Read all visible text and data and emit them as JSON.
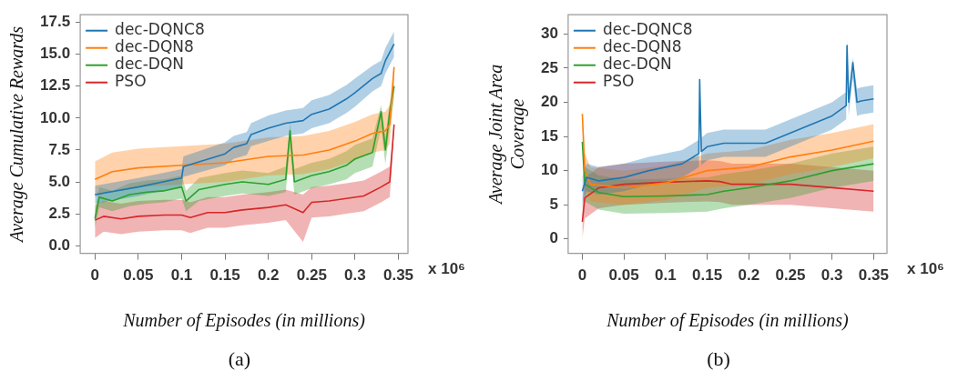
{
  "chart_data": [
    {
      "type": "line",
      "xlabel": "Number of Episodes (in millions)",
      "ylabel": "Average Cumulative Rewards",
      "xlim": [
        -0.017,
        0.361
      ],
      "ylim": [
        -0.6,
        18.1
      ],
      "xticks": [
        0,
        0.05,
        0.1,
        0.15,
        0.2,
        0.25,
        0.3,
        0.35
      ],
      "yticks": [
        {
          "value": 0,
          "label": "0.0"
        },
        {
          "value": 2.5,
          "label": "2.5"
        },
        {
          "value": 5,
          "label": "5.0"
        },
        {
          "value": 7.5,
          "label": "7.5"
        },
        {
          "value": 10,
          "label": "10.0"
        },
        {
          "value": 12.5,
          "label": "12.5"
        },
        {
          "value": 15,
          "label": "15.0"
        },
        {
          "value": 17.5,
          "label": "17.5"
        }
      ],
      "grid": false,
      "legend": "top left",
      "marker": "none",
      "line_style": "solid",
      "annotations": [
        "x 10⁶",
        "(a)"
      ],
      "series": [
        {
          "name": "dec-DQNC8",
          "color": "#1f77b4",
          "x": [
            0,
            0.05,
            0.1,
            0.102,
            0.15,
            0.16,
            0.175,
            0.18,
            0.2,
            0.22,
            0.24,
            0.25,
            0.27,
            0.29,
            0.3,
            0.32,
            0.33,
            0.335,
            0.345
          ],
          "values": [
            4.0,
            4.6,
            5.3,
            6.2,
            7.2,
            7.7,
            8.0,
            8.7,
            9.2,
            9.6,
            9.8,
            10.3,
            10.7,
            11.5,
            12.0,
            13.1,
            13.5,
            14.5,
            15.8
          ],
          "lower": [
            3.3,
            3.9,
            4.6,
            5.4,
            6.3,
            6.8,
            7.1,
            7.8,
            8.2,
            8.6,
            8.8,
            9.2,
            9.6,
            10.4,
            10.9,
            12.1,
            12.5,
            13.5,
            14.8
          ],
          "upper": [
            4.7,
            5.3,
            6.0,
            7.0,
            8.1,
            8.6,
            8.9,
            9.6,
            10.2,
            10.6,
            10.8,
            11.4,
            11.8,
            12.6,
            13.1,
            14.1,
            14.5,
            15.5,
            16.8
          ]
        },
        {
          "name": "dec-DQN8",
          "color": "#ff7f0e",
          "x": [
            0,
            0.02,
            0.05,
            0.1,
            0.15,
            0.2,
            0.24,
            0.27,
            0.3,
            0.32,
            0.335,
            0.34,
            0.345
          ],
          "values": [
            5.2,
            5.8,
            6.1,
            6.3,
            6.5,
            7.0,
            7.1,
            7.5,
            8.2,
            8.8,
            9.0,
            9.5,
            14.0
          ],
          "lower": [
            3.8,
            4.3,
            4.6,
            4.8,
            5.0,
            5.5,
            5.6,
            6.0,
            6.7,
            7.3,
            7.5,
            8.0,
            12.5
          ],
          "upper": [
            6.6,
            7.3,
            7.6,
            7.8,
            8.0,
            8.5,
            8.6,
            9.0,
            9.7,
            10.3,
            10.5,
            11.0,
            14.5
          ]
        },
        {
          "name": "dec-DQN",
          "color": "#2ca02c",
          "x": [
            0,
            0.005,
            0.02,
            0.04,
            0.06,
            0.08,
            0.1,
            0.105,
            0.12,
            0.15,
            0.17,
            0.2,
            0.22,
            0.225,
            0.23,
            0.25,
            0.27,
            0.29,
            0.3,
            0.32,
            0.33,
            0.335,
            0.34,
            0.345
          ],
          "values": [
            2.1,
            3.8,
            3.5,
            4.0,
            4.2,
            4.3,
            4.6,
            3.5,
            4.4,
            4.8,
            5.0,
            4.8,
            5.2,
            9.0,
            5.0,
            5.5,
            5.8,
            6.3,
            6.8,
            7.3,
            10.5,
            7.5,
            10.5,
            12.5
          ],
          "lower": [
            1.4,
            3.0,
            2.7,
            3.1,
            3.3,
            3.4,
            3.7,
            2.7,
            3.5,
            3.9,
            4.1,
            3.9,
            4.2,
            7.8,
            4.0,
            4.5,
            4.8,
            5.2,
            5.7,
            6.2,
            9.2,
            6.4,
            9.3,
            11.5
          ],
          "upper": [
            2.8,
            4.6,
            4.3,
            4.9,
            5.1,
            5.2,
            5.5,
            4.3,
            5.3,
            5.7,
            5.9,
            5.7,
            6.2,
            9.6,
            6.0,
            6.5,
            6.8,
            7.4,
            7.9,
            8.4,
            11.0,
            8.6,
            11.2,
            12.8
          ]
        },
        {
          "name": "PSO",
          "color": "#d62728",
          "x": [
            0,
            0.01,
            0.03,
            0.05,
            0.08,
            0.1,
            0.11,
            0.13,
            0.15,
            0.17,
            0.2,
            0.22,
            0.24,
            0.25,
            0.27,
            0.29,
            0.31,
            0.33,
            0.34,
            0.345
          ],
          "values": [
            2.0,
            2.3,
            2.1,
            2.3,
            2.4,
            2.4,
            2.2,
            2.6,
            2.6,
            2.8,
            3.0,
            3.2,
            2.6,
            3.4,
            3.5,
            3.7,
            3.9,
            4.6,
            5.0,
            9.5
          ],
          "lower": [
            0.6,
            1.1,
            0.9,
            1.1,
            1.2,
            1.2,
            1.0,
            1.4,
            1.4,
            1.6,
            1.8,
            2.0,
            0.3,
            2.2,
            2.3,
            2.5,
            2.7,
            3.4,
            3.8,
            9.0
          ],
          "upper": [
            3.2,
            3.5,
            3.3,
            3.5,
            3.6,
            3.6,
            3.4,
            3.8,
            3.8,
            4.0,
            4.2,
            4.4,
            4.0,
            4.6,
            4.7,
            4.9,
            5.1,
            5.8,
            6.2,
            9.6
          ]
        }
      ]
    },
    {
      "type": "line",
      "xlabel": "Number of Episodes (in millions)",
      "ylabel": "Average Joint Area\nCoverage",
      "xlim": [
        -0.017,
        0.366
      ],
      "ylim": [
        -2.1,
        32.8
      ],
      "xticks": [
        0,
        0.05,
        0.1,
        0.15,
        0.2,
        0.25,
        0.3,
        0.35
      ],
      "yticks": [
        0,
        5,
        10,
        15,
        20,
        25,
        30
      ],
      "grid": false,
      "legend": "top left",
      "marker": "none",
      "line_style": "solid",
      "annotations": [
        "x 10⁶",
        "(b)"
      ],
      "series": [
        {
          "name": "dec-DQNC8",
          "color": "#1f77b4",
          "x": [
            0,
            0.005,
            0.02,
            0.05,
            0.08,
            0.1,
            0.12,
            0.14,
            0.141,
            0.143,
            0.15,
            0.17,
            0.2,
            0.22,
            0.25,
            0.28,
            0.3,
            0.317,
            0.318,
            0.32,
            0.325,
            0.33,
            0.335,
            0.35
          ],
          "values": [
            7,
            9,
            8.5,
            9,
            10,
            10.5,
            11,
            12.5,
            23.3,
            12.8,
            13.5,
            14,
            14,
            14,
            15.5,
            17,
            18,
            19.5,
            28.3,
            20,
            25.8,
            20,
            20.2,
            20.5
          ],
          "lower": [
            5,
            7,
            6.5,
            7,
            8,
            8.5,
            9,
            10.5,
            21,
            10.8,
            11.5,
            12,
            12,
            12,
            13.5,
            15,
            16,
            17.5,
            26,
            18,
            23.5,
            18,
            18.2,
            18.5
          ],
          "upper": [
            9,
            11,
            10.5,
            11,
            12,
            12.5,
            13,
            14.5,
            24,
            14.8,
            15.5,
            16,
            16,
            16,
            17.5,
            19,
            20,
            21.5,
            29,
            22,
            26.5,
            22,
            22.2,
            22.5
          ]
        },
        {
          "name": "dec-DQN8",
          "color": "#ff7f0e",
          "x": [
            0,
            0.003,
            0.01,
            0.05,
            0.1,
            0.15,
            0.2,
            0.25,
            0.3,
            0.35
          ],
          "values": [
            18.3,
            10,
            8,
            7.5,
            8.2,
            10,
            10.5,
            12,
            13,
            14.3
          ],
          "lower": [
            16,
            7.5,
            5.5,
            5,
            5.7,
            7.5,
            8,
            9.5,
            10.5,
            11.8
          ],
          "upper": [
            19,
            12.5,
            10.5,
            10,
            10.7,
            12.5,
            13,
            14.5,
            15.5,
            16.8
          ]
        },
        {
          "name": "dec-DQN",
          "color": "#2ca02c",
          "x": [
            0,
            0.003,
            0.02,
            0.05,
            0.1,
            0.15,
            0.17,
            0.2,
            0.25,
            0.3,
            0.35
          ],
          "values": [
            14.2,
            8,
            6.8,
            6.2,
            6.3,
            6.5,
            7.0,
            7.5,
            8.5,
            10,
            11
          ],
          "lower": [
            12,
            5.5,
            4.3,
            3.7,
            3.8,
            4.0,
            4.5,
            5.0,
            6.0,
            7.5,
            8.5
          ],
          "upper": [
            15,
            10.5,
            9.3,
            8.7,
            8.8,
            9.0,
            9.5,
            10,
            11,
            12.5,
            13.5
          ]
        },
        {
          "name": "PSO",
          "color": "#d62728",
          "x": [
            0,
            0.003,
            0.02,
            0.05,
            0.1,
            0.15,
            0.165,
            0.18,
            0.25,
            0.3,
            0.35
          ],
          "values": [
            2.5,
            6,
            7.5,
            8.0,
            8.3,
            8.5,
            8.4,
            8.0,
            8.0,
            7.5,
            7.0
          ],
          "lower": [
            0,
            3,
            4.5,
            5,
            5.3,
            5.5,
            5.4,
            5,
            5,
            4.5,
            4
          ],
          "upper": [
            5,
            9,
            10.5,
            11,
            11.3,
            11.5,
            11.4,
            11,
            11,
            10.5,
            10
          ]
        }
      ]
    }
  ]
}
